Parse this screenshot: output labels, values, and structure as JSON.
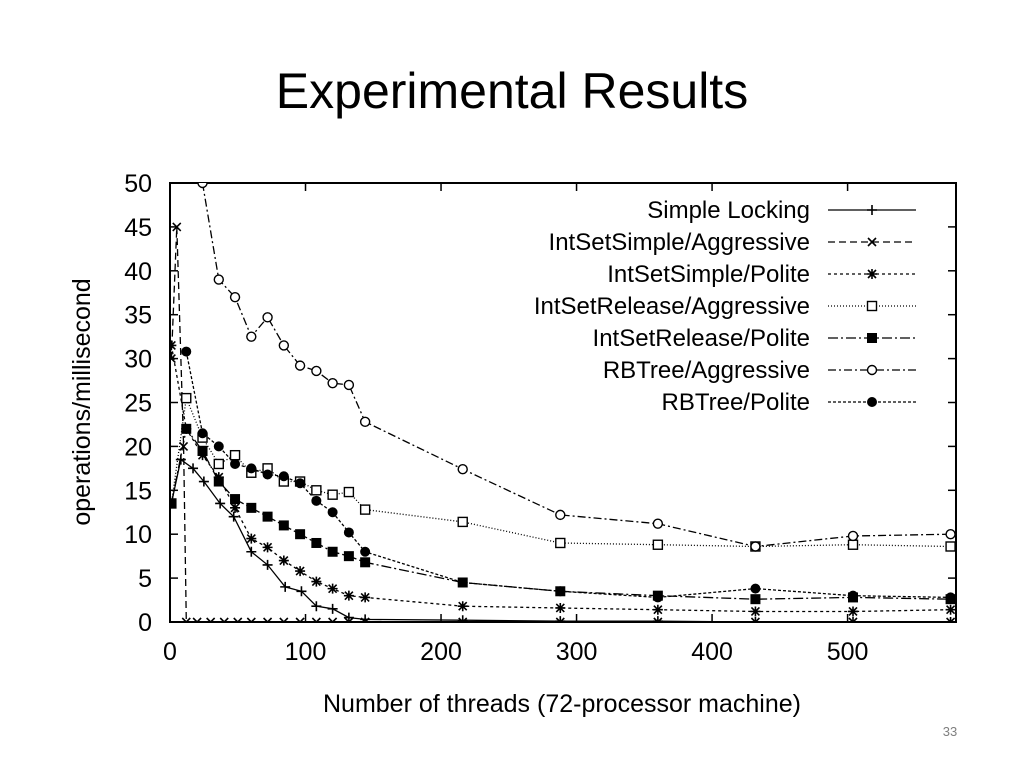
{
  "slide": {
    "title": "Experimental Results",
    "page_number": "33"
  },
  "chart_data": {
    "type": "line",
    "xlabel": "Number of threads (72-processor machine)",
    "ylabel": "operations/millisecond",
    "xlim": [
      0,
      580
    ],
    "ylim": [
      0,
      50
    ],
    "xticks": [
      0,
      100,
      200,
      300,
      400,
      500
    ],
    "yticks": [
      0,
      5,
      10,
      15,
      20,
      25,
      30,
      35,
      40,
      45,
      50
    ],
    "grid": false,
    "legend_position": "top-right",
    "series": [
      {
        "name": "Simple Locking",
        "marker": "plus",
        "dash": "",
        "points": [
          [
            1,
            13.5
          ],
          [
            8,
            18.5
          ],
          [
            17,
            17.5
          ],
          [
            25,
            16
          ],
          [
            37,
            13.5
          ],
          [
            47,
            12
          ],
          [
            60,
            8
          ],
          [
            72,
            6.5
          ],
          [
            85,
            4
          ],
          [
            97,
            3.5
          ],
          [
            108,
            1.8
          ],
          [
            120,
            1.5
          ],
          [
            132,
            0.5
          ],
          [
            144,
            0.3
          ],
          [
            216,
            0.2
          ],
          [
            288,
            0.1
          ],
          [
            360,
            0.1
          ],
          [
            432,
            0
          ],
          [
            504,
            0
          ],
          [
            576,
            0
          ]
        ]
      },
      {
        "name": "IntSetSimple/Aggressive",
        "marker": "x",
        "dash": "7,4",
        "points": [
          [
            1,
            30
          ],
          [
            5,
            45
          ],
          [
            10,
            20
          ],
          [
            12,
            0
          ],
          [
            20,
            0
          ],
          [
            30,
            0
          ],
          [
            40,
            0
          ],
          [
            50,
            0
          ],
          [
            60,
            0
          ],
          [
            72,
            0
          ],
          [
            84,
            0
          ],
          [
            96,
            0
          ],
          [
            108,
            0
          ],
          [
            120,
            0
          ],
          [
            132,
            0
          ],
          [
            144,
            0
          ],
          [
            216,
            0
          ],
          [
            288,
            0
          ],
          [
            360,
            0
          ],
          [
            432,
            0
          ],
          [
            504,
            0
          ],
          [
            576,
            0
          ]
        ]
      },
      {
        "name": "IntSetSimple/Polite",
        "marker": "star",
        "dash": "3,3",
        "points": [
          [
            1,
            31.5
          ],
          [
            12,
            22
          ],
          [
            24,
            19
          ],
          [
            36,
            16.5
          ],
          [
            48,
            13
          ],
          [
            60,
            9.5
          ],
          [
            72,
            8.5
          ],
          [
            84,
            7
          ],
          [
            96,
            5.8
          ],
          [
            108,
            4.6
          ],
          [
            120,
            3.8
          ],
          [
            132,
            3
          ],
          [
            144,
            2.8
          ],
          [
            216,
            1.8
          ],
          [
            288,
            1.6
          ],
          [
            360,
            1.4
          ],
          [
            432,
            1.2
          ],
          [
            504,
            1.2
          ],
          [
            576,
            1.4
          ]
        ]
      },
      {
        "name": "IntSetRelease/Aggressive",
        "marker": "square-open",
        "dash": "1,2",
        "points": [
          [
            1,
            13.5
          ],
          [
            12,
            25.5
          ],
          [
            24,
            21
          ],
          [
            36,
            18
          ],
          [
            48,
            19
          ],
          [
            60,
            17
          ],
          [
            72,
            17.5
          ],
          [
            84,
            16
          ],
          [
            96,
            16
          ],
          [
            108,
            15
          ],
          [
            120,
            14.5
          ],
          [
            132,
            14.8
          ],
          [
            144,
            12.8
          ],
          [
            216,
            11.4
          ],
          [
            288,
            9
          ],
          [
            360,
            8.8
          ],
          [
            432,
            8.6
          ],
          [
            504,
            8.8
          ],
          [
            576,
            8.6
          ]
        ]
      },
      {
        "name": "IntSetRelease/Polite",
        "marker": "square-filled",
        "dash": "10,3,2,3",
        "points": [
          [
            1,
            13.5
          ],
          [
            12,
            22
          ],
          [
            24,
            19.5
          ],
          [
            36,
            16
          ],
          [
            48,
            14
          ],
          [
            60,
            13
          ],
          [
            72,
            12
          ],
          [
            84,
            11
          ],
          [
            96,
            10
          ],
          [
            108,
            9
          ],
          [
            120,
            8
          ],
          [
            132,
            7.5
          ],
          [
            144,
            6.8
          ],
          [
            216,
            4.5
          ],
          [
            288,
            3.5
          ],
          [
            360,
            3
          ],
          [
            432,
            2.6
          ],
          [
            504,
            2.8
          ],
          [
            576,
            2.6
          ]
        ]
      },
      {
        "name": "RBTree/Aggressive",
        "marker": "circle-open",
        "dash": "8,3,2,3",
        "points": [
          [
            24,
            50
          ],
          [
            36,
            39
          ],
          [
            48,
            37
          ],
          [
            60,
            32.5
          ],
          [
            72,
            34.7
          ],
          [
            84,
            31.5
          ],
          [
            96,
            29.2
          ],
          [
            108,
            28.6
          ],
          [
            120,
            27.2
          ],
          [
            132,
            27
          ],
          [
            144,
            22.8
          ],
          [
            216,
            17.4
          ],
          [
            288,
            12.2
          ],
          [
            360,
            11.2
          ],
          [
            432,
            8.6
          ],
          [
            504,
            9.8
          ],
          [
            576,
            10
          ]
        ]
      },
      {
        "name": "RBTree/Polite",
        "marker": "circle-filled",
        "dash": "3,2",
        "points": [
          [
            12,
            30.8
          ],
          [
            24,
            21.5
          ],
          [
            36,
            20
          ],
          [
            48,
            18
          ],
          [
            60,
            17.5
          ],
          [
            72,
            16.8
          ],
          [
            84,
            16.6
          ],
          [
            96,
            15.8
          ],
          [
            108,
            13.8
          ],
          [
            120,
            12.5
          ],
          [
            132,
            10.2
          ],
          [
            144,
            8
          ],
          [
            216,
            4.5
          ],
          [
            288,
            3.5
          ],
          [
            360,
            2.8
          ],
          [
            432,
            3.8
          ],
          [
            504,
            3
          ],
          [
            576,
            2.8
          ]
        ]
      }
    ]
  }
}
